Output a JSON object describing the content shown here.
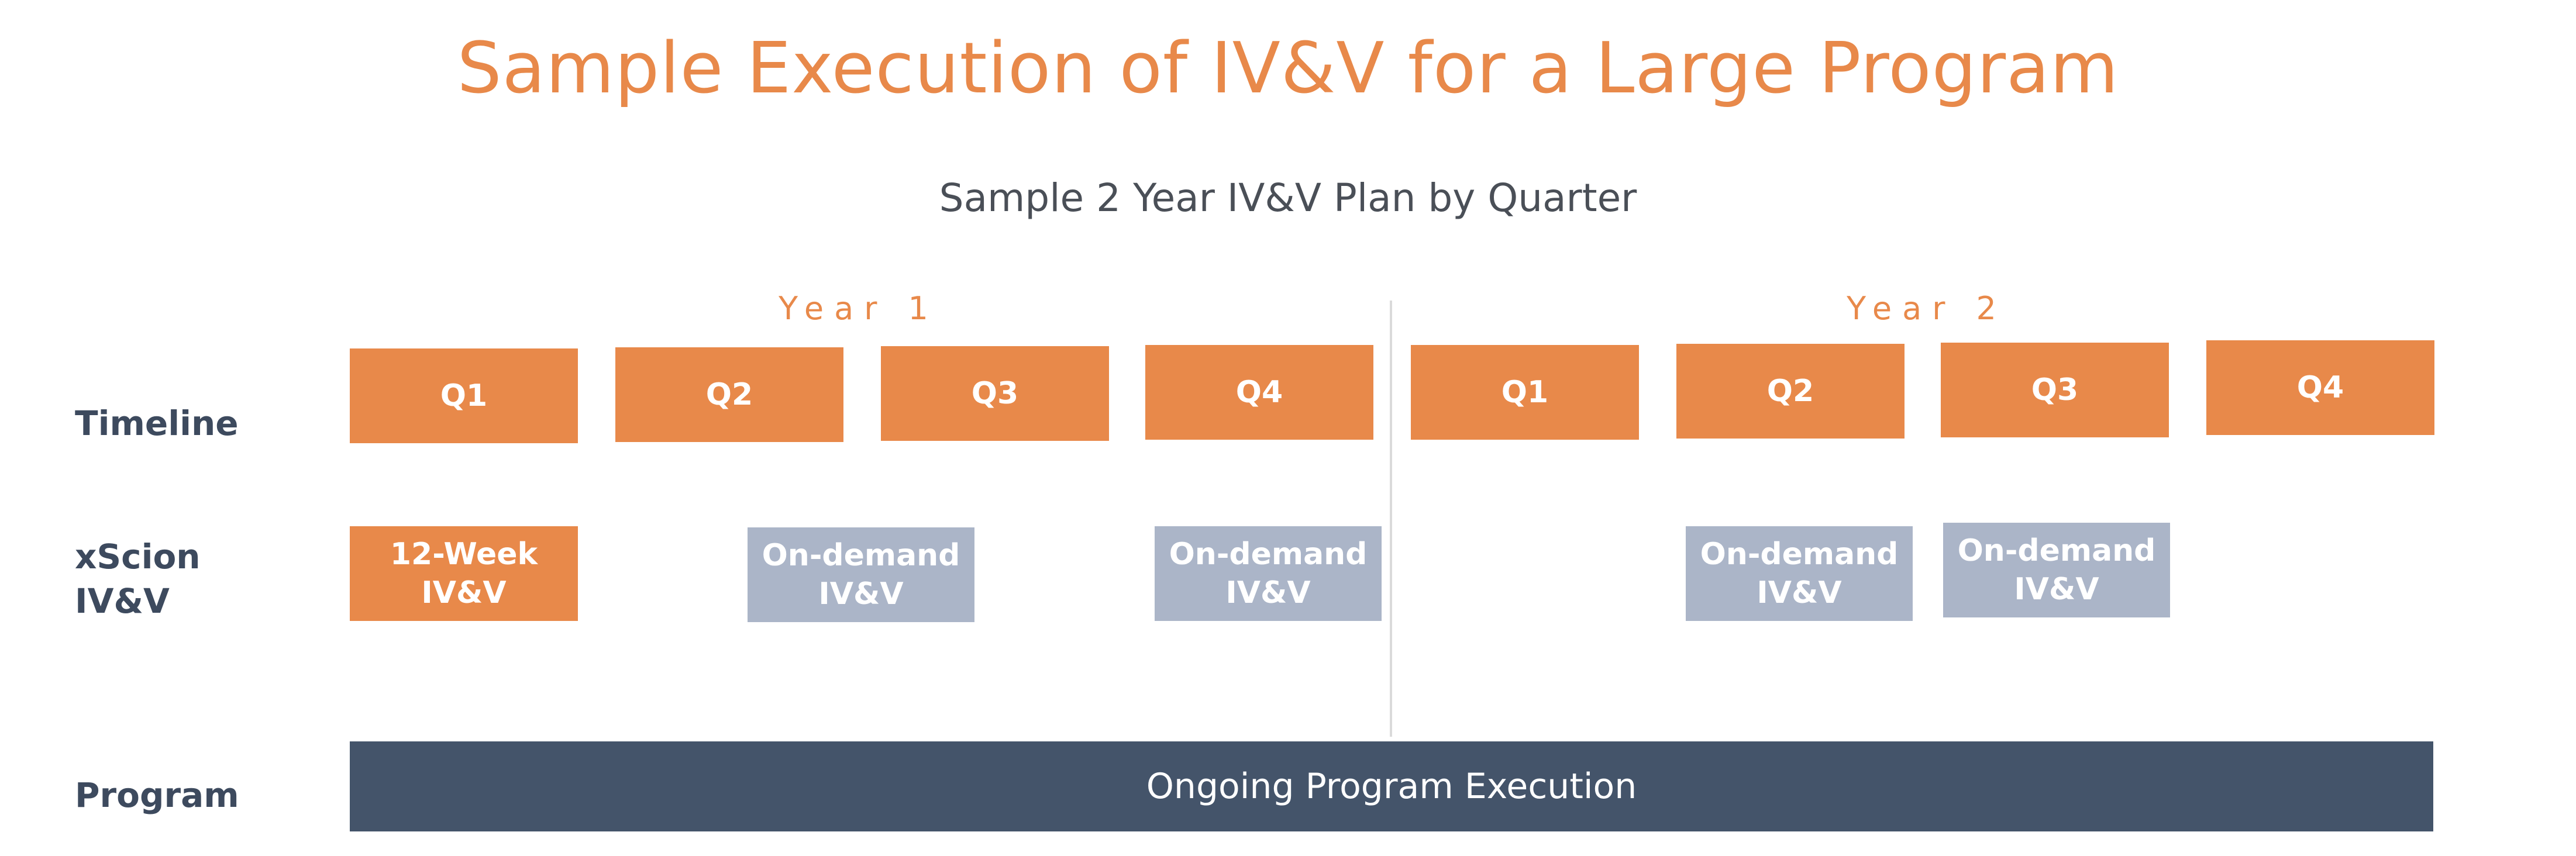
{
  "title": "Sample Execution of IV&V for a Large Program",
  "subtitle": "Sample 2 Year IV&V Plan by Quarter",
  "years": [
    "Year 1",
    "Year 2"
  ],
  "row_labels": {
    "timeline": "Timeline",
    "xscion": "xScion\nIV&V",
    "program": "Program"
  },
  "quarters": [
    "Q1",
    "Q2",
    "Q3",
    "Q4",
    "Q1",
    "Q2",
    "Q3",
    "Q4"
  ],
  "ivv_blocks": [
    {
      "label": "12-Week\nIV&V",
      "quarter": "Year 1 Q1",
      "type": "12-week"
    },
    {
      "label": "On-demand\nIV&V",
      "quarter": "Year 1 Q2-Q3",
      "type": "on-demand"
    },
    {
      "label": "On-demand\nIV&V",
      "quarter": "Year 1 Q4",
      "type": "on-demand"
    },
    {
      "label": "On-demand\nIV&V",
      "quarter": "Year 2 Q2",
      "type": "on-demand"
    },
    {
      "label": "On-demand\nIV&V",
      "quarter": "Year 2 Q3",
      "type": "on-demand"
    }
  ],
  "program_bar": "Ongoing Program Execution",
  "colors": {
    "accent": "#E8894A",
    "on_demand": "#ABB5C8",
    "program": "#44546A",
    "label_text": "#3d4a5e"
  }
}
